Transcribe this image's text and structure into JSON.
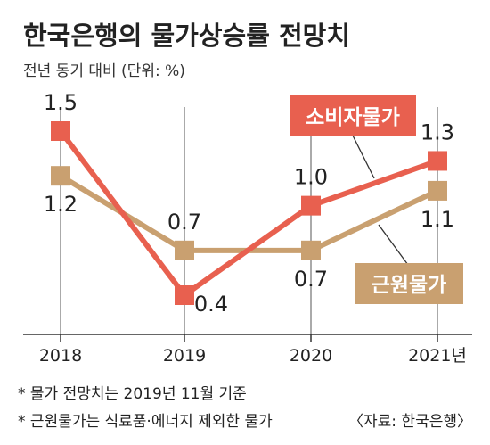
{
  "chart_data": {
    "type": "line",
    "title": "한국은행의 물가상승률 전망치",
    "subtitle": "전년 동기 대비 (단위: %)",
    "categories": [
      "2018",
      "2019",
      "2020",
      "2021년"
    ],
    "ylim": [
      0.2,
      1.7
    ],
    "series": [
      {
        "name": "소비자물가",
        "values": [
          1.5,
          0.4,
          1.0,
          1.3
        ],
        "labels": [
          "1.5",
          "0.4",
          "1.0",
          "1.3"
        ],
        "color": "#e8604f"
      },
      {
        "name": "근원물가",
        "values": [
          1.2,
          0.7,
          0.7,
          1.1
        ],
        "labels": [
          "1.2",
          "0.7",
          "0.7",
          "1.1"
        ],
        "color": "#c9a070"
      }
    ],
    "footnotes": [
      "* 물가 전망치는 2019년 11월 기준",
      "* 근원물가는 식료품·에너지 제외한 물가"
    ],
    "source": "〈자료: 한국은행〉",
    "grid": false,
    "legend": "inline labels"
  }
}
